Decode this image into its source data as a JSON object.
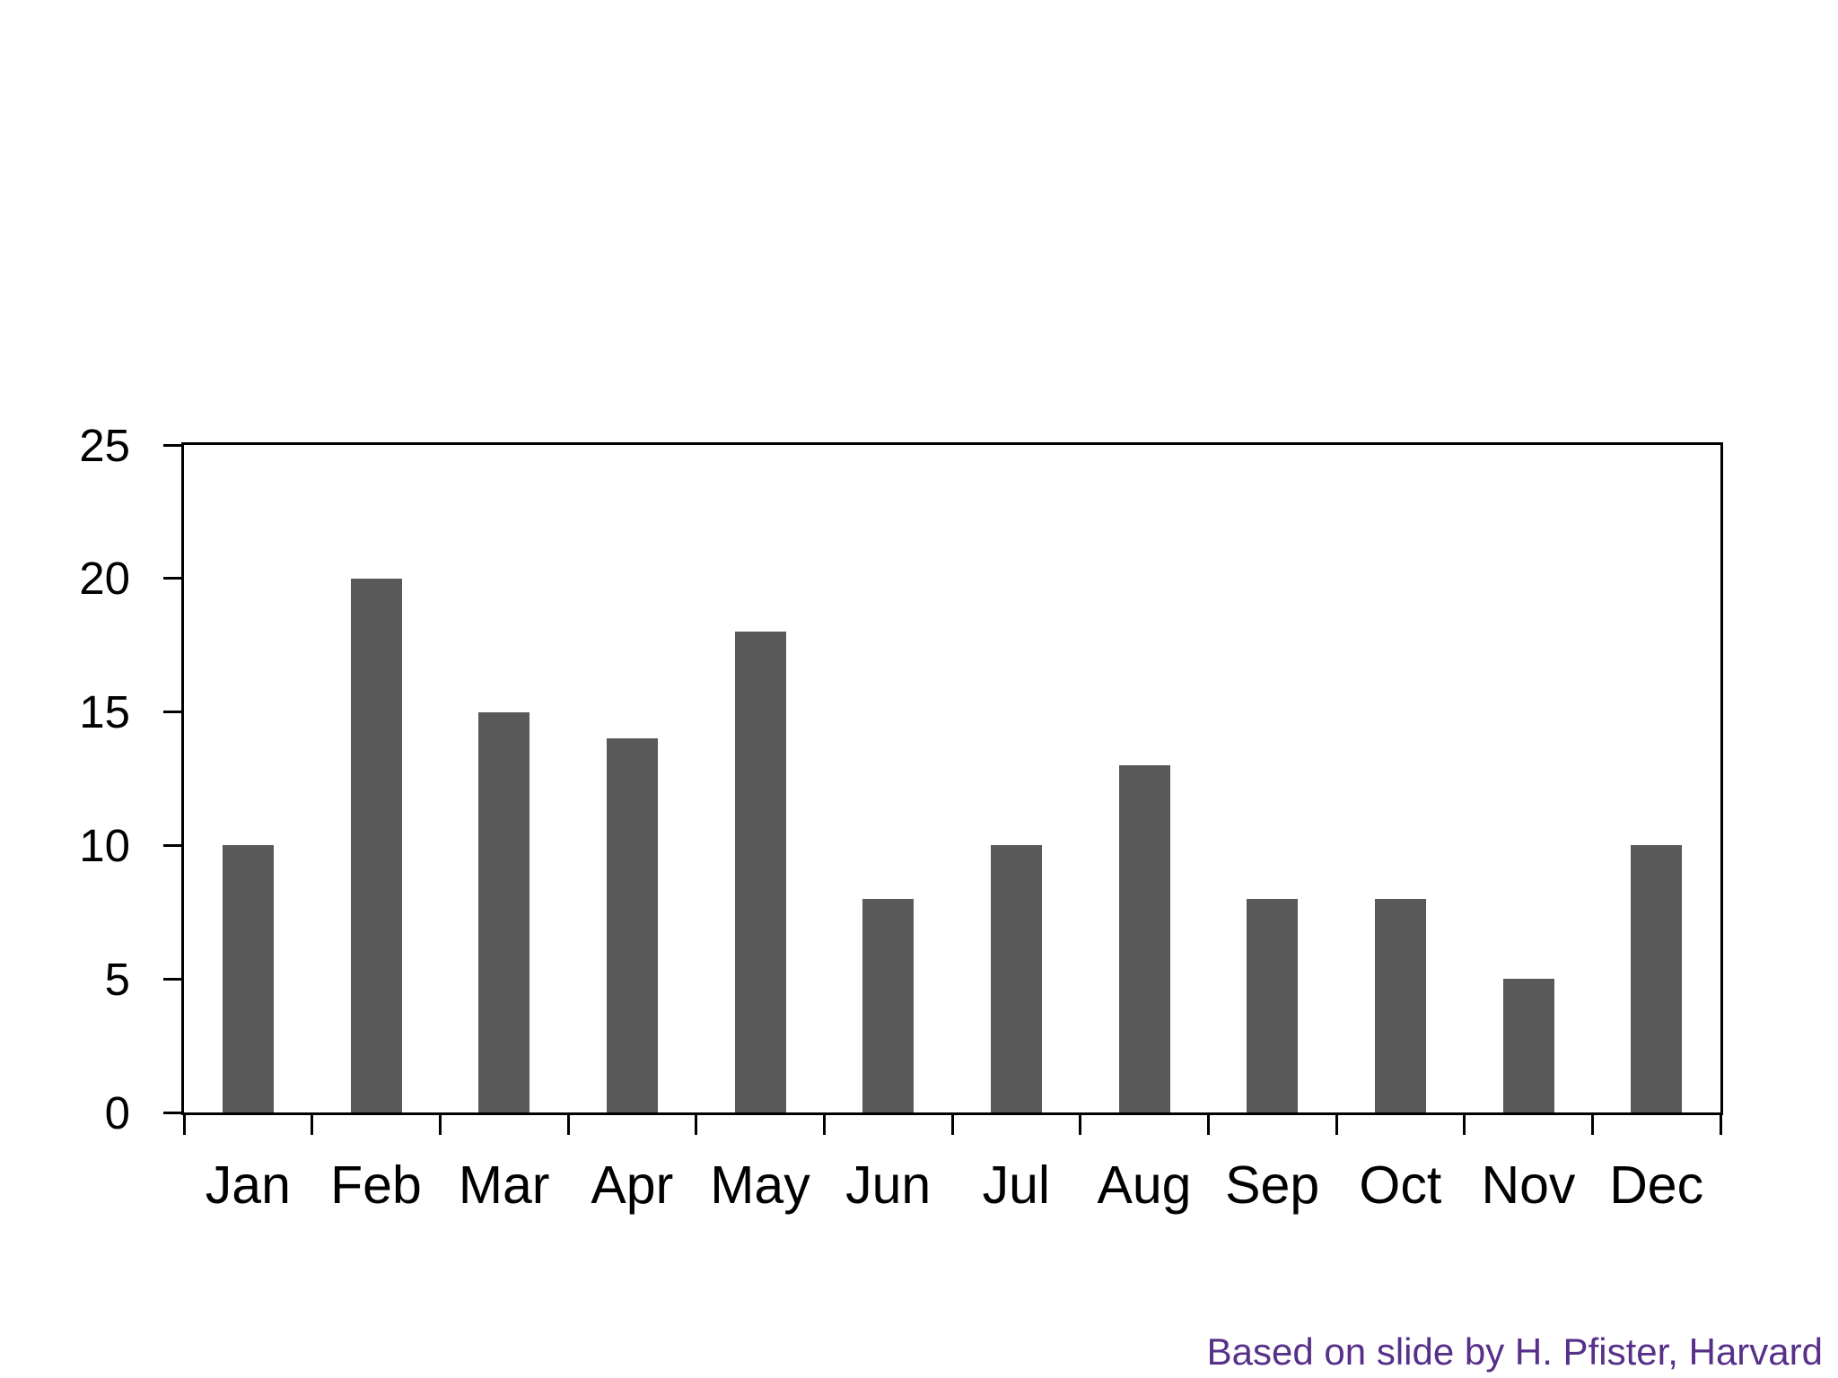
{
  "page": {
    "background": "#ffffff"
  },
  "chart_data": {
    "type": "bar",
    "title": "",
    "xlabel": "",
    "ylabel": "",
    "categories": [
      "Jan",
      "Feb",
      "Mar",
      "Apr",
      "May",
      "Jun",
      "Jul",
      "Aug",
      "Sep",
      "Oct",
      "Nov",
      "Dec"
    ],
    "values": [
      10,
      20,
      15,
      14,
      18,
      8,
      10,
      13,
      8,
      8,
      5,
      10
    ],
    "ylim": [
      0,
      25
    ],
    "yticks": [
      0,
      5,
      10,
      15,
      20,
      25
    ],
    "grid": false,
    "legend": "none",
    "bar_color": "#595959",
    "axis_color": "#000000",
    "plot_border": true,
    "tick_style": "outside"
  },
  "caption": {
    "text": "Based on slide by H. Pfister, Harvard",
    "color": "#563089"
  }
}
